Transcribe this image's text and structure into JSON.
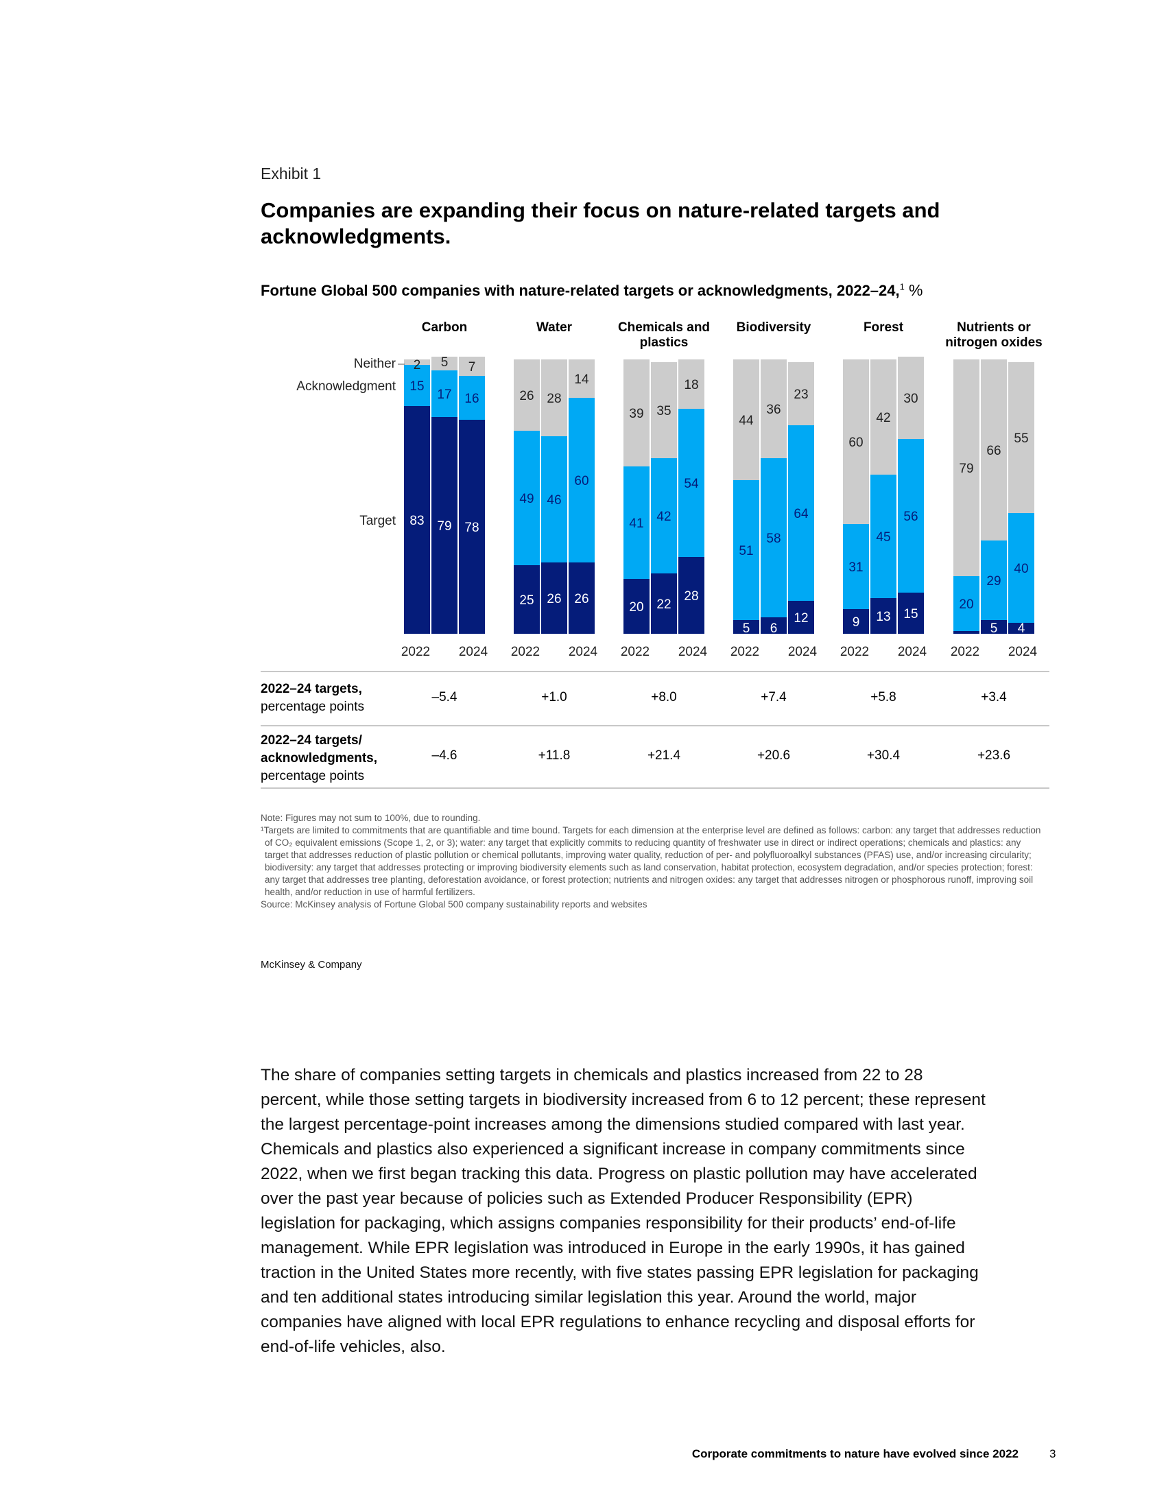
{
  "exhibit_label": "Exhibit 1",
  "headline": "Companies are expanding their focus on nature-related targets and acknowledgments.",
  "subtitle": {
    "text": "Fortune Global 500 companies with nature-related targets or acknowledgments, 2022–24,",
    "footnote_mark": "1",
    "unit": "%"
  },
  "chart_data": {
    "type": "bar",
    "stacked": true,
    "unit": "%",
    "ylim": [
      0,
      100
    ],
    "segment_labels": [
      "Neither",
      "Acknowledgment",
      "Target"
    ],
    "x_tick_labels": [
      "2022",
      "2024"
    ],
    "colors": {
      "Target": "#051c7a",
      "Acknowledgment": "#00a9f4",
      "Neither": "#cccccc"
    },
    "groups": [
      {
        "name": "Carbon",
        "years": [
          "2022",
          "2023",
          "2024"
        ],
        "Target": [
          83,
          79,
          78
        ],
        "Acknowledgment": [
          15,
          17,
          16
        ],
        "Neither": [
          2,
          5,
          7
        ]
      },
      {
        "name": "Water",
        "years": [
          "2022",
          "2023",
          "2024"
        ],
        "Target": [
          25,
          26,
          26
        ],
        "Acknowledgment": [
          49,
          46,
          60
        ],
        "Neither": [
          26,
          28,
          14
        ]
      },
      {
        "name": "Chemicals and plastics",
        "years": [
          "2022",
          "2023",
          "2024"
        ],
        "Target": [
          20,
          22,
          28
        ],
        "Acknowledgment": [
          41,
          42,
          54
        ],
        "Neither": [
          39,
          35,
          18
        ]
      },
      {
        "name": "Biodiversity",
        "years": [
          "2022",
          "2023",
          "2024"
        ],
        "Target": [
          5,
          6,
          12
        ],
        "Acknowledgment": [
          51,
          58,
          64
        ],
        "Neither": [
          44,
          36,
          23
        ]
      },
      {
        "name": "Forest",
        "years": [
          "2022",
          "2023",
          "2024"
        ],
        "Target": [
          9,
          13,
          15
        ],
        "Acknowledgment": [
          31,
          45,
          56
        ],
        "Neither": [
          60,
          42,
          30
        ]
      },
      {
        "name": "Nutrients or nitrogen oxides",
        "years": [
          "2022",
          "2023",
          "2024"
        ],
        "Target": [
          1,
          5,
          4
        ],
        "Acknowledgment": [
          20,
          29,
          40
        ],
        "Neither": [
          79,
          66,
          55
        ]
      }
    ]
  },
  "summary_rows": [
    {
      "label_bold": "2022–24 targets,",
      "label_rest": "percentage points",
      "values": [
        "–5.4",
        "+1.0",
        "+8.0",
        "+7.4",
        "+5.8",
        "+3.4"
      ]
    },
    {
      "label_bold": "2022–24 targets/ acknowledgments,",
      "label_rest": "percentage points",
      "values": [
        "–4.6",
        "+11.8",
        "+21.4",
        "+20.6",
        "+30.4",
        "+23.6"
      ]
    }
  ],
  "notes": {
    "note": "Note: Figures may not sum to 100%, due to rounding.",
    "footnote": "¹Targets are limited to commitments that are quantifiable and time bound. Targets for each dimension at the enterprise level are defined as follows: carbon: any target that addresses reduction of CO₂ equivalent emissions (Scope 1, 2, or 3); water: any target that explicitly commits to reducing quantity of freshwater use in direct or indirect operations; chemicals and plastics: any target that addresses reduction of plastic pollution or chemical pollutants, improving water quality, reduction of per- and polyfluoroalkyl substances (PFAS) use, and/or increasing circularity; biodiversity: any target that addresses protecting or improving biodiversity elements such as land conservation, habitat protection, ecosystem degradation, and/or species protection; forest: any target that addresses tree planting, deforestation avoidance, or forest protection; nutrients and nitrogen oxides: any target that addresses nitrogen or phosphorous runoff, improving soil health, and/or reduction in use of harmful fertilizers.",
    "source": "Source: McKinsey analysis of Fortune Global 500 company sustainability reports and websites"
  },
  "brand": "McKinsey & Company",
  "body_text": "The share of companies setting targets in chemicals and plastics increased from 22 to 28 percent, while those setting targets in biodiversity increased from 6 to 12 percent; these represent the largest percentage-point increases among the dimensions studied compared with last year. Chemicals and plastics also experienced a significant increase in company commitments since 2022, when we first began tracking this data. Progress on plastic pollution may have accelerated over the past year because of policies such as Extended Producer Responsibility (EPR) legislation for packaging, which assigns companies responsibility for their products’ end-of-life management. While EPR legislation was introduced in Europe in the early 1990s, it has gained traction in the United States more recently, with five states passing EPR legislation for packaging and ten additional states introducing similar legislation this year. Around the world, major companies have aligned with local EPR regulations to enhance recycling and disposal efforts for end-of-life vehicles, also.",
  "footer": {
    "title": "Corporate commitments to nature have evolved since 2022",
    "page": "3"
  }
}
